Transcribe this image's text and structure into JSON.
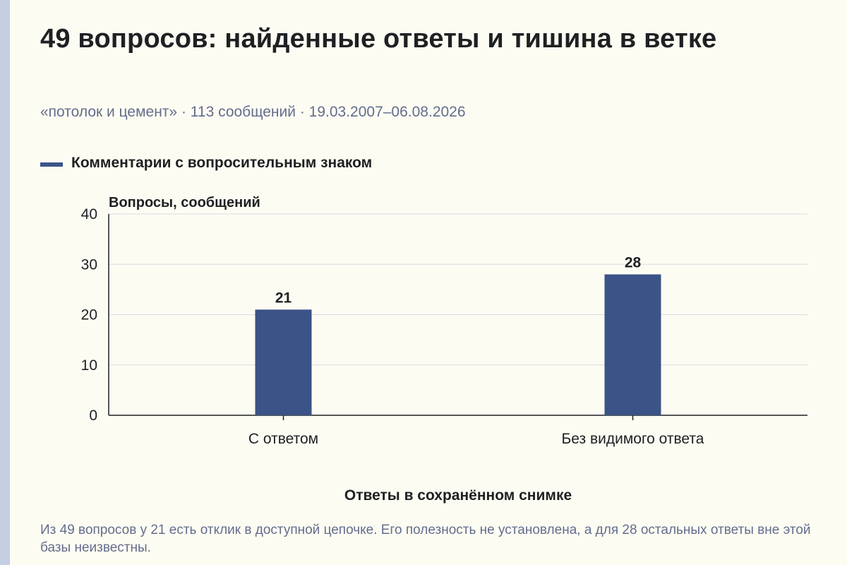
{
  "header": {
    "title": "49 вопросов: найденные ответы и тишина в ветке",
    "subtitle": "«потолок и цемент» · 113 сообщений · 19.03.2007–06.08.2026"
  },
  "colors": {
    "bar": "#3b5387",
    "background": "#fdfcf3",
    "grid": "#d9dbe0",
    "text": "#1e2022",
    "muted": "#646d8c"
  },
  "chart_data": {
    "type": "bar",
    "categories": [
      "С ответом",
      "Без видимого ответа"
    ],
    "series": [
      {
        "name": "Комментарии с вопросительным знаком",
        "values": [
          21,
          28
        ]
      }
    ],
    "data_labels": [
      "21",
      "28"
    ],
    "ylabel": "Вопросы, сообщений",
    "xlabel": "Ответы в сохранённом снимке",
    "ylim": [
      0,
      40
    ],
    "yticks": [
      0,
      10,
      20,
      30,
      40
    ],
    "grid": true,
    "legend_position": "top-left"
  },
  "footnote": "Из 49 вопросов у 21 есть отклик в доступной цепочке. Его полезность не установлена, а для 28 остальных ответы вне этой базы неизвестны."
}
